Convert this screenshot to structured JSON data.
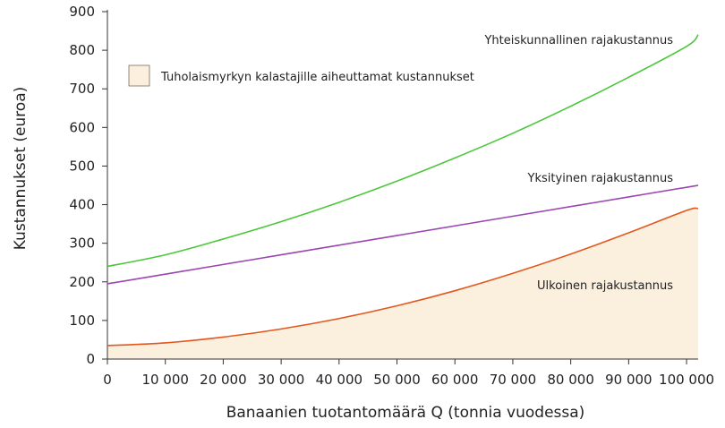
{
  "chart_data": {
    "type": "line",
    "xlabel": "Banaanien tuotantomäärä Q (tonnia vuodessa)",
    "ylabel": "Kustannukset (euroa)",
    "xlim": [
      0,
      102000
    ],
    "ylim": [
      0,
      900
    ],
    "x_ticks": [
      0,
      10000,
      20000,
      30000,
      40000,
      50000,
      60000,
      70000,
      80000,
      90000,
      100000
    ],
    "x_tick_labels": [
      "0",
      "10 000",
      "20 000",
      "30 000",
      "40 000",
      "50 000",
      "60 000",
      "70 000",
      "80 000",
      "90 000",
      "100 000"
    ],
    "y_ticks": [
      0,
      100,
      200,
      300,
      400,
      500,
      600,
      700,
      800,
      900
    ],
    "y_tick_labels": [
      "0",
      "100",
      "200",
      "300",
      "400",
      "500",
      "600",
      "700",
      "800",
      "900"
    ],
    "grid": false,
    "legend": {
      "placement": "top-left",
      "entries": [
        {
          "label": "Tuholaismyrkyn kalastajille aiheuttamat kustannukset",
          "color": "#fbefde"
        }
      ]
    },
    "x": [
      0,
      10000,
      20000,
      30000,
      40000,
      50000,
      60000,
      70000,
      80000,
      90000,
      100000,
      102000
    ],
    "series": [
      {
        "name": "Yhteiskunnallinen rajakustannus",
        "color": "#4cc73c",
        "values": [
          240,
          270,
          311,
          356,
          406,
          461,
          521,
          585,
          655,
          730,
          810,
          840
        ]
      },
      {
        "name": "Yksityinen rajakustannus",
        "color": "#9b46b2",
        "values": [
          195,
          220,
          245,
          270,
          295,
          320,
          345,
          370,
          395,
          420,
          445,
          450
        ]
      },
      {
        "name": "Ulkoinen rajakustannus",
        "color": "#e3571e",
        "fill": "#fbefde",
        "values": [
          35,
          42,
          57,
          78,
          105,
          138,
          177,
          222,
          272,
          327,
          385,
          390
        ]
      }
    ],
    "annotations": [
      {
        "text": "Yhteiskunnallinen rajakustannus",
        "series": "Yhteiskunnallinen rajakustannus"
      },
      {
        "text": "Yksityinen rajakustannus",
        "series": "Yksityinen rajakustannus"
      },
      {
        "text": "Ulkoinen rajakustannus",
        "series": "Ulkoinen rajakustannus"
      }
    ]
  }
}
